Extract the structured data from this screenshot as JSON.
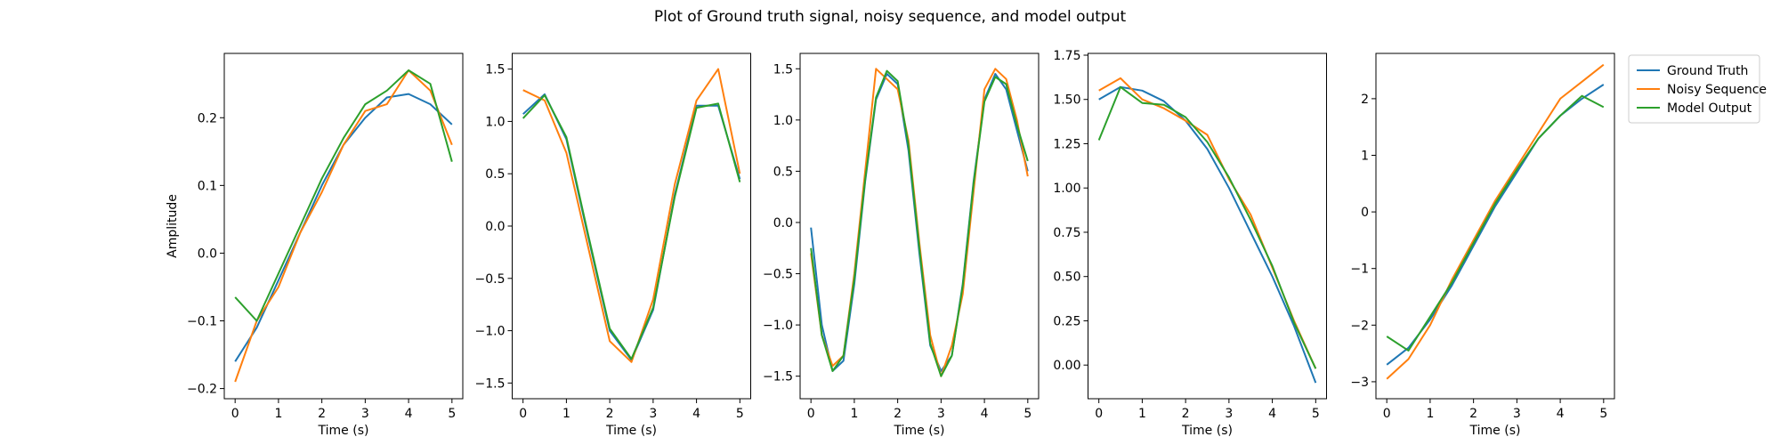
{
  "title": "Plot of Ground truth signal, noisy sequence, and model output",
  "legend": [
    {
      "name": "Ground Truth",
      "color": "#1f77b4"
    },
    {
      "name": "Noisy Sequence",
      "color": "#ff7f0e"
    },
    {
      "name": "Model Output",
      "color": "#2ca02c"
    }
  ],
  "chart_data": [
    {
      "type": "line",
      "xlabel": "Time (s)",
      "ylabel": "Amplitude",
      "xlim": [
        -0.25,
        5.25
      ],
      "ylim": [
        -0.215,
        0.295
      ],
      "xticks": [
        0,
        1,
        2,
        3,
        4,
        5
      ],
      "yticks": [
        -0.2,
        -0.1,
        0.0,
        0.1,
        0.2
      ],
      "yticklabels": [
        "−0.2",
        "−0.1",
        "0.0",
        "0.1",
        "0.2"
      ],
      "x": [
        0,
        0.5,
        1,
        1.5,
        2,
        2.5,
        3,
        3.5,
        4,
        4.5,
        5
      ],
      "series": [
        {
          "name": "Ground Truth",
          "values": [
            -0.16,
            -0.11,
            -0.04,
            0.03,
            0.1,
            0.16,
            0.2,
            0.23,
            0.235,
            0.22,
            0.19
          ]
        },
        {
          "name": "Noisy Sequence",
          "values": [
            -0.19,
            -0.1,
            -0.05,
            0.03,
            0.09,
            0.16,
            0.21,
            0.22,
            0.27,
            0.24,
            0.16
          ]
        },
        {
          "name": "Model Output",
          "values": [
            -0.065,
            -0.1,
            -0.03,
            0.04,
            0.11,
            0.17,
            0.22,
            0.24,
            0.27,
            0.25,
            0.135
          ]
        }
      ]
    },
    {
      "type": "line",
      "xlabel": "Time (s)",
      "ylabel": "",
      "xlim": [
        -0.25,
        5.25
      ],
      "ylim": [
        -1.65,
        1.65
      ],
      "xticks": [
        0,
        1,
        2,
        3,
        4,
        5
      ],
      "yticks": [
        -1.5,
        -1.0,
        -0.5,
        0.0,
        0.5,
        1.0,
        1.5
      ],
      "yticklabels": [
        "−1.5",
        "−1.0",
        "−0.5",
        "0.0",
        "0.5",
        "1.0",
        "1.5"
      ],
      "x": [
        0,
        0.5,
        1,
        1.5,
        2,
        2.5,
        3,
        3.5,
        4,
        4.5,
        5
      ],
      "series": [
        {
          "name": "Ground Truth",
          "values": [
            1.07,
            1.26,
            0.83,
            -0.1,
            -1.0,
            -1.28,
            -0.8,
            0.3,
            1.15,
            1.15,
            0.45
          ]
        },
        {
          "name": "Noisy Sequence",
          "values": [
            1.3,
            1.2,
            0.7,
            -0.2,
            -1.1,
            -1.3,
            -0.7,
            0.4,
            1.2,
            1.5,
            0.5
          ]
        },
        {
          "name": "Model Output",
          "values": [
            1.03,
            1.25,
            0.85,
            -0.08,
            -0.98,
            -1.27,
            -0.78,
            0.28,
            1.13,
            1.17,
            0.42
          ]
        }
      ]
    },
    {
      "type": "line",
      "xlabel": "Time (s)",
      "ylabel": "",
      "xlim": [
        -0.25,
        5.25
      ],
      "ylim": [
        -1.72,
        1.65
      ],
      "xticks": [
        0,
        1,
        2,
        3,
        4,
        5
      ],
      "yticks": [
        -1.5,
        -1.0,
        -0.5,
        0.0,
        0.5,
        1.0,
        1.5
      ],
      "yticklabels": [
        "−1.5",
        "−1.0",
        "−0.5",
        "0.0",
        "0.5",
        "1.0",
        "1.5"
      ],
      "x": [
        0,
        0.25,
        0.5,
        0.75,
        1,
        1.25,
        1.5,
        1.75,
        2,
        2.25,
        2.5,
        2.75,
        3,
        3.25,
        3.5,
        3.75,
        4,
        4.25,
        4.5,
        4.75,
        5
      ],
      "series": [
        {
          "name": "Ground Truth",
          "values": [
            -0.05,
            -1.0,
            -1.45,
            -1.35,
            -0.6,
            0.4,
            1.2,
            1.45,
            1.35,
            0.7,
            -0.3,
            -1.2,
            -1.45,
            -1.3,
            -0.6,
            0.4,
            1.2,
            1.45,
            1.3,
            0.9,
            0.5
          ]
        },
        {
          "name": "Noisy Sequence",
          "values": [
            -0.3,
            -1.1,
            -1.4,
            -1.3,
            -0.5,
            0.5,
            1.5,
            1.4,
            1.3,
            0.8,
            -0.2,
            -1.1,
            -1.5,
            -1.2,
            -0.7,
            0.3,
            1.3,
            1.5,
            1.4,
            1.0,
            0.45
          ]
        },
        {
          "name": "Model Output",
          "values": [
            -0.25,
            -1.1,
            -1.45,
            -1.3,
            -0.55,
            0.42,
            1.22,
            1.48,
            1.38,
            0.75,
            -0.25,
            -1.18,
            -1.5,
            -1.3,
            -0.62,
            0.38,
            1.18,
            1.42,
            1.35,
            0.95,
            0.6
          ]
        }
      ]
    },
    {
      "type": "line",
      "xlabel": "Time (s)",
      "ylabel": "",
      "xlim": [
        -0.25,
        5.25
      ],
      "ylim": [
        -0.19,
        1.76
      ],
      "xticks": [
        0,
        1,
        2,
        3,
        4,
        5
      ],
      "yticks": [
        0.0,
        0.25,
        0.5,
        0.75,
        1.0,
        1.25,
        1.5,
        1.75
      ],
      "yticklabels": [
        "0.00",
        "0.25",
        "0.50",
        "0.75",
        "1.00",
        "1.25",
        "1.50",
        "1.75"
      ],
      "x": [
        0,
        0.5,
        1,
        1.5,
        2,
        2.5,
        3,
        3.5,
        4,
        4.5,
        5
      ],
      "series": [
        {
          "name": "Ground Truth",
          "values": [
            1.5,
            1.57,
            1.55,
            1.49,
            1.38,
            1.22,
            1.0,
            0.75,
            0.5,
            0.22,
            -0.1
          ]
        },
        {
          "name": "Noisy Sequence",
          "values": [
            1.55,
            1.62,
            1.5,
            1.45,
            1.38,
            1.3,
            1.05,
            0.85,
            0.55,
            0.25,
            -0.02
          ]
        },
        {
          "name": "Model Output",
          "values": [
            1.27,
            1.57,
            1.48,
            1.47,
            1.4,
            1.26,
            1.06,
            0.82,
            0.56,
            0.24,
            -0.02
          ]
        }
      ]
    },
    {
      "type": "line",
      "xlabel": "Time (s)",
      "ylabel": "",
      "xlim": [
        -0.25,
        5.25
      ],
      "ylim": [
        -3.3,
        2.8
      ],
      "xticks": [
        0,
        1,
        2,
        3,
        4,
        5
      ],
      "yticks": [
        -3,
        -2,
        -1,
        0,
        1,
        2
      ],
      "yticklabels": [
        "−3",
        "−2",
        "−1",
        "0",
        "1",
        "2"
      ],
      "x": [
        0,
        0.5,
        1,
        1.5,
        2,
        2.5,
        3,
        3.5,
        4,
        4.5,
        5
      ],
      "series": [
        {
          "name": "Ground Truth",
          "values": [
            -2.7,
            -2.4,
            -1.9,
            -1.3,
            -0.6,
            0.1,
            0.7,
            1.3,
            1.7,
            2.0,
            2.25
          ]
        },
        {
          "name": "Noisy Sequence",
          "values": [
            -2.95,
            -2.6,
            -2.0,
            -1.2,
            -0.5,
            0.2,
            0.8,
            1.4,
            2.0,
            2.3,
            2.6
          ]
        },
        {
          "name": "Model Output",
          "values": [
            -2.2,
            -2.45,
            -1.85,
            -1.25,
            -0.55,
            0.15,
            0.75,
            1.3,
            1.7,
            2.05,
            1.85
          ]
        }
      ]
    }
  ]
}
